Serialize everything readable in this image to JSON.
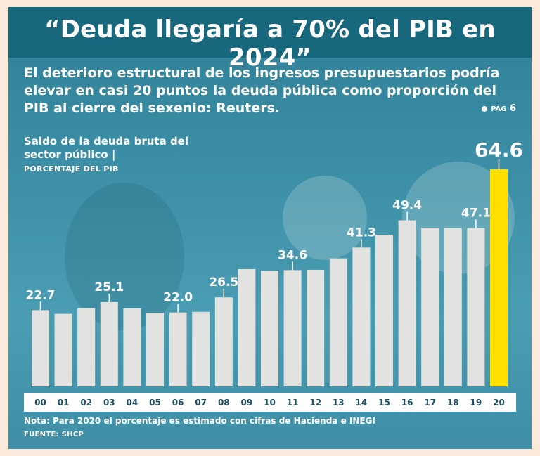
{
  "headline": "“Deuda llegaría a 70% del PIB en 2024”",
  "subtitle": "El deterioro estructural de los ingresos presupuestarios podría elevar en casi 20 puntos la deuda pública como proporción del PIB al cierre del sexenio: Reuters.",
  "page_ref": {
    "label": "PÁG",
    "number": "6"
  },
  "note": "Nota: Para 2020 el porcentaje es estimado con cifras de Hacienda e INEGI",
  "source": "FUENTE: SHCP",
  "colors": {
    "bar": "#e2e2e0",
    "highlight": "#ffde00",
    "background": "#3b8ea5",
    "header": "#17677d"
  },
  "chart_data": {
    "type": "bar",
    "title": "Saldo de la deuda bruta del sector público |",
    "ylabel": "PORCENTAJE DEL PIB",
    "xlabel": "",
    "categories": [
      "00",
      "01",
      "02",
      "03",
      "04",
      "05",
      "06",
      "07",
      "08",
      "09",
      "10",
      "11",
      "12",
      "13",
      "14",
      "15",
      "16",
      "17",
      "18",
      "19",
      "20"
    ],
    "values": [
      22.7,
      21.6,
      23.3,
      25.1,
      23.2,
      21.9,
      22.0,
      22.2,
      26.5,
      34.9,
      34.4,
      34.6,
      34.7,
      38.1,
      41.3,
      45.1,
      49.4,
      47.2,
      47.1,
      47.1,
      64.6
    ],
    "labels_shown": {
      "0": "22.7",
      "3": "25.1",
      "6": "22.0",
      "8": "26.5",
      "11": "34.6",
      "14": "41.3",
      "16": "49.4",
      "19": "47.1",
      "20": "64.6"
    },
    "highlight_index": 20,
    "ylim": [
      0,
      70
    ],
    "grid": false
  }
}
